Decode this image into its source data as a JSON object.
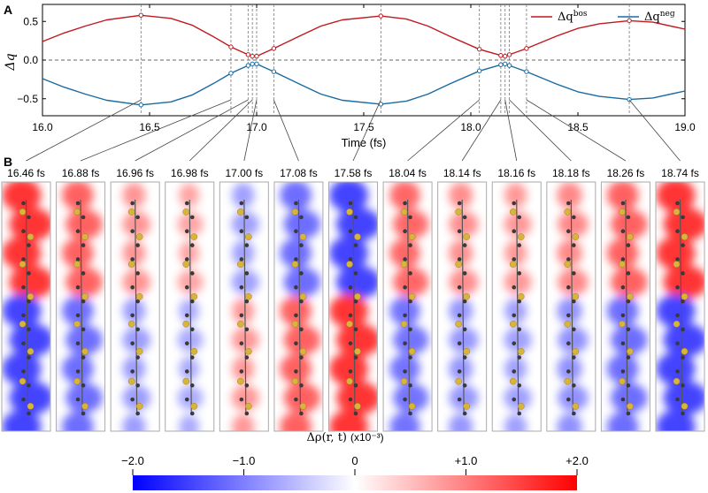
{
  "chart_data": [
    {
      "panel": "A",
      "type": "line",
      "xlabel": "Time (fs)",
      "ylabel": "Δq",
      "xlim": [
        16.0,
        19.0
      ],
      "ylim": [
        -0.72,
        0.72
      ],
      "xticks": [
        "16.0",
        "16.5",
        "17.0",
        "17.5",
        "18.0",
        "18.5",
        "19.0"
      ],
      "xtick_values": [
        16.0,
        16.5,
        17.0,
        17.5,
        18.0,
        18.5,
        19.0
      ],
      "yticks": [
        "0.5",
        "0.0",
        "−0.5"
      ],
      "ytick_values": [
        0.5,
        0.0,
        -0.5
      ],
      "legend_position": "top-right",
      "series": [
        {
          "name": "Δq",
          "superscript": "bos",
          "color": "#c0191e",
          "sign": 1,
          "x": [
            16.0,
            16.1,
            16.2,
            16.3,
            16.46,
            16.6,
            16.7,
            16.8,
            16.88,
            16.96,
            16.98,
            17.0,
            17.08,
            17.2,
            17.3,
            17.4,
            17.58,
            17.7,
            17.8,
            17.9,
            18.04,
            18.14,
            18.16,
            18.18,
            18.26,
            18.4,
            18.5,
            18.6,
            18.74,
            18.85,
            19.0
          ],
          "values": [
            0.24,
            0.35,
            0.44,
            0.52,
            0.58,
            0.54,
            0.45,
            0.3,
            0.17,
            0.07,
            0.05,
            0.05,
            0.15,
            0.31,
            0.44,
            0.52,
            0.57,
            0.53,
            0.44,
            0.31,
            0.14,
            0.06,
            0.05,
            0.07,
            0.15,
            0.31,
            0.41,
            0.47,
            0.51,
            0.49,
            0.4
          ]
        },
        {
          "name": "Δq",
          "superscript": "neg",
          "color": "#1a6aa0",
          "sign": -1,
          "x": [
            16.0,
            16.1,
            16.2,
            16.3,
            16.46,
            16.6,
            16.7,
            16.8,
            16.88,
            16.96,
            16.98,
            17.0,
            17.08,
            17.2,
            17.3,
            17.4,
            17.58,
            17.7,
            17.8,
            17.9,
            18.04,
            18.14,
            18.16,
            18.18,
            18.26,
            18.4,
            18.5,
            18.6,
            18.74,
            18.85,
            19.0
          ],
          "values": [
            -0.24,
            -0.35,
            -0.44,
            -0.52,
            -0.58,
            -0.54,
            -0.45,
            -0.3,
            -0.17,
            -0.07,
            -0.05,
            -0.05,
            -0.15,
            -0.31,
            -0.44,
            -0.52,
            -0.57,
            -0.53,
            -0.44,
            -0.31,
            -0.14,
            -0.06,
            -0.05,
            -0.07,
            -0.15,
            -0.31,
            -0.41,
            -0.47,
            -0.51,
            -0.49,
            -0.4
          ]
        }
      ],
      "marked_times": [
        16.46,
        16.88,
        16.96,
        16.98,
        17.0,
        17.08,
        17.58,
        18.04,
        18.14,
        18.16,
        18.18,
        18.26,
        18.74
      ]
    },
    {
      "panel": "B",
      "type": "heatmap",
      "frames": [
        {
          "label": "16.46 fs",
          "t": 16.46,
          "sign": 1,
          "amp": 1.0
        },
        {
          "label": "16.88 fs",
          "t": 16.88,
          "sign": 1,
          "amp": 0.65
        },
        {
          "label": "16.96 fs",
          "t": 16.96,
          "sign": 1,
          "amp": 0.25
        },
        {
          "label": "16.98 fs",
          "t": 16.98,
          "sign": 1,
          "amp": 0.12
        },
        {
          "label": "17.00 fs",
          "t": 17.0,
          "sign": -1,
          "amp": 0.22
        },
        {
          "label": "17.08 fs",
          "t": 17.08,
          "sign": -1,
          "amp": 0.65
        },
        {
          "label": "17.58 fs",
          "t": 17.58,
          "sign": -1,
          "amp": 1.0
        },
        {
          "label": "18.04 fs",
          "t": 18.04,
          "sign": 1,
          "amp": 0.6
        },
        {
          "label": "18.14 fs",
          "t": 18.14,
          "sign": 1,
          "amp": 0.3
        },
        {
          "label": "18.16 fs",
          "t": 18.16,
          "sign": 1,
          "amp": 0.22
        },
        {
          "label": "18.18 fs",
          "t": 18.18,
          "sign": 1,
          "amp": 0.35
        },
        {
          "label": "18.26 fs",
          "t": 18.26,
          "sign": 1,
          "amp": 0.65
        },
        {
          "label": "18.74 fs",
          "t": 18.74,
          "sign": 1,
          "amp": 1.0
        }
      ],
      "colorbar": {
        "label_main": "Δρ(r, t)",
        "label_unit": "(x10⁻³)",
        "ticks": [
          "−2.0",
          "−1.0",
          "0",
          "+1.0",
          "+2.0"
        ],
        "tick_values": [
          -2.0,
          -1.0,
          0,
          1.0,
          2.0
        ],
        "colors": [
          "#0000ff",
          "#ffffff",
          "#ff0000"
        ]
      }
    }
  ],
  "panel_labels": {
    "a": "A",
    "b": "B"
  }
}
